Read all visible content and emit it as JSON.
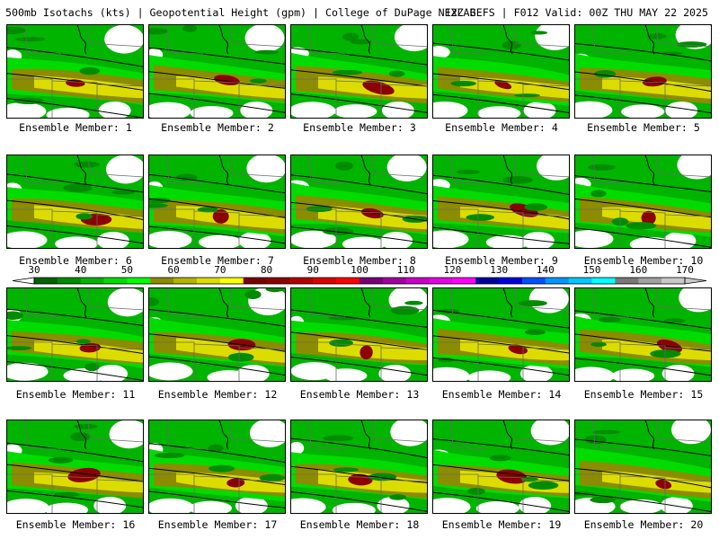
{
  "header": {
    "title": "500mb Isotachs (kts) | Geopotential Height (gpm) | College of DuPage NEXLAB",
    "run": "12Z GEFS | F012 Valid: 00Z THU MAY 22 2025"
  },
  "colorbar": {
    "ticks": [
      "30",
      "40",
      "50",
      "60",
      "70",
      "80",
      "90",
      "100",
      "110",
      "120",
      "130",
      "140",
      "150",
      "160",
      "170"
    ],
    "colors": [
      "#006400",
      "#008c00",
      "#00b400",
      "#00dc00",
      "#00ff00",
      "#8c8c00",
      "#b4b400",
      "#dcdc00",
      "#ffff00",
      "#780000",
      "#8c0000",
      "#b40000",
      "#dc0000",
      "#ff0000",
      "#780078",
      "#a000a0",
      "#c800c8",
      "#e600e6",
      "#ff00ff",
      "#0000a0",
      "#0000dc",
      "#0050ff",
      "#0096ff",
      "#00c8ff",
      "#00ffff",
      "#787878",
      "#a0a0a0",
      "#c8c8c8"
    ]
  },
  "members": [
    {
      "label": "Ensemble Member: 1"
    },
    {
      "label": "Ensemble Member: 2"
    },
    {
      "label": "Ensemble Member: 3"
    },
    {
      "label": "Ensemble Member: 4"
    },
    {
      "label": "Ensemble Member: 5"
    },
    {
      "label": "Ensemble Member: 6"
    },
    {
      "label": "Ensemble Member: 7"
    },
    {
      "label": "Ensemble Member: 8"
    },
    {
      "label": "Ensemble Member: 9"
    },
    {
      "label": "Ensemble Member: 10"
    },
    {
      "label": "Ensemble Member: 11"
    },
    {
      "label": "Ensemble Member: 12"
    },
    {
      "label": "Ensemble Member: 13"
    },
    {
      "label": "Ensemble Member: 14"
    },
    {
      "label": "Ensemble Member: 15"
    },
    {
      "label": "Ensemble Member: 16"
    },
    {
      "label": "Ensemble Member: 17"
    },
    {
      "label": "Ensemble Member: 18"
    },
    {
      "label": "Ensemble Member: 19"
    },
    {
      "label": "Ensemble Member: 20"
    }
  ]
}
